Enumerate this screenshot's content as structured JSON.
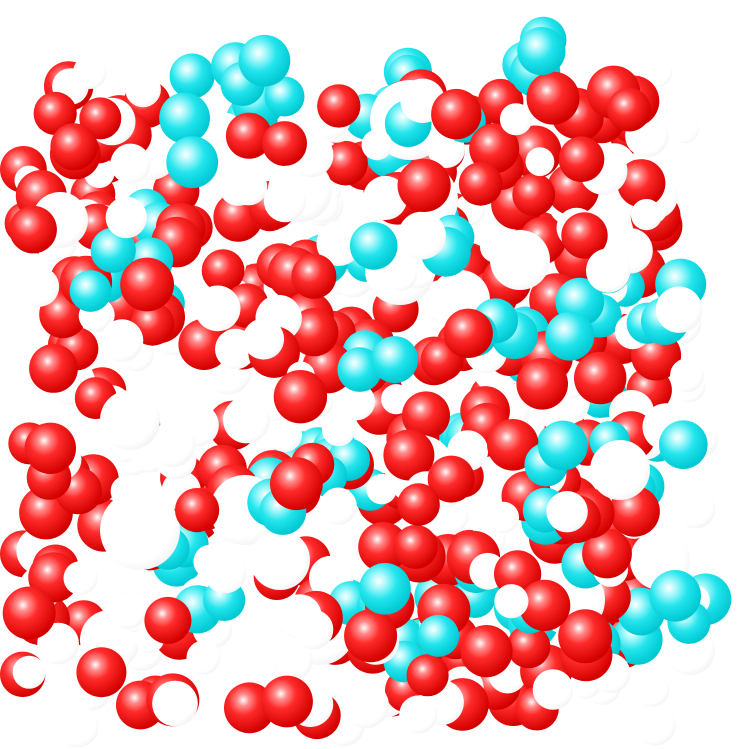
{
  "scene": {
    "background": "#ffffff",
    "atom_colors": {
      "oxygen": "#ff1a1a",
      "hydrogen": "#ffffff",
      "cyan": "#12e8f0"
    },
    "description_tags": [
      "water-molecules",
      "cyan-spheres",
      "space-filling-render"
    ]
  }
}
